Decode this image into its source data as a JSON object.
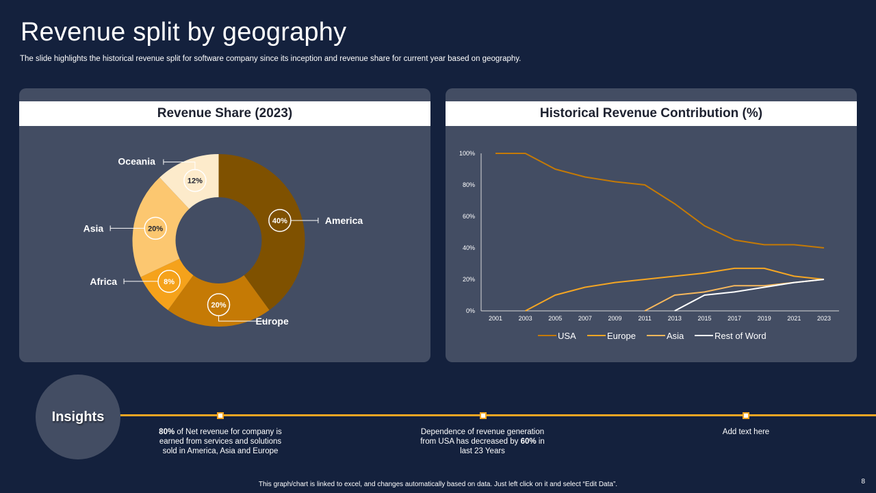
{
  "title": "Revenue split by geography",
  "subtitle": "The slide highlights the historical revenue split for software company since its inception and revenue share for current year  based on geography.",
  "left_panel": {
    "header": "Revenue Share (2023)"
  },
  "right_panel": {
    "header": "Historical Revenue Contribution (%)"
  },
  "insights": {
    "label": "Insights",
    "items": [
      {
        "bold": "80%",
        "text_a": " of Net revenue for company is earned from services and solutions sold in America, Asia and Europe",
        "text_b": ""
      },
      {
        "bold": "60%",
        "text_a": "Dependence of revenue generation from USA has decreased by ",
        "text_b": " in last 23 Years"
      },
      {
        "bold": "",
        "text_a": "Add text here",
        "text_b": ""
      }
    ]
  },
  "footer": "This graph/chart is linked to excel, and changes automatically based on data. Just left click on it and select “Edit Data”.",
  "page_number": "8",
  "colors": {
    "background": "#14213d",
    "panel": "#434d63",
    "accent": "#f5a623",
    "america": "#7f5100",
    "europe": "#c57a05",
    "africa": "#f5a21b",
    "asia": "#fcc770",
    "oceania": "#fdebcb"
  },
  "chart_data": [
    {
      "type": "pie",
      "variant": "donut",
      "title": "Revenue Share (2023)",
      "slices": [
        {
          "label": "America",
          "value": 40,
          "display": "40%",
          "color": "#7f5100"
        },
        {
          "label": "Europe",
          "value": 20,
          "display": "20%",
          "color": "#c57a05"
        },
        {
          "label": "Africa",
          "value": 8,
          "display": "8%",
          "color": "#f5a21b"
        },
        {
          "label": "Asia",
          "value": 20,
          "display": "20%",
          "color": "#fcc770"
        },
        {
          "label": "Oceania",
          "value": 12,
          "display": "12%",
          "color": "#fdebcb"
        }
      ]
    },
    {
      "type": "line",
      "title": "Historical Revenue Contribution (%)",
      "x": [
        "2001",
        "2003",
        "2005",
        "2007",
        "2009",
        "2011",
        "2013",
        "2015",
        "2017",
        "2019",
        "2021",
        "2023"
      ],
      "ylim": [
        0,
        100
      ],
      "yticks": [
        "0%",
        "20%",
        "40%",
        "60%",
        "80%",
        "100%"
      ],
      "legend": "bottom",
      "grid": false,
      "series": [
        {
          "name": "USA",
          "color": "#c57a05",
          "values": [
            100,
            100,
            90,
            85,
            82,
            80,
            68,
            54,
            45,
            42,
            42,
            40
          ]
        },
        {
          "name": "Europe",
          "color": "#f5a623",
          "values": [
            null,
            0,
            10,
            15,
            18,
            20,
            22,
            24,
            27,
            27,
            22,
            20
          ]
        },
        {
          "name": "Asia",
          "color": "#f7b85c",
          "values": [
            null,
            null,
            null,
            null,
            null,
            0,
            10,
            12,
            16,
            16,
            18,
            20
          ]
        },
        {
          "name": "Rest of Word",
          "color": "#ffffff",
          "values": [
            null,
            null,
            null,
            null,
            null,
            null,
            0,
            10,
            12,
            15,
            18,
            20
          ]
        }
      ]
    }
  ]
}
